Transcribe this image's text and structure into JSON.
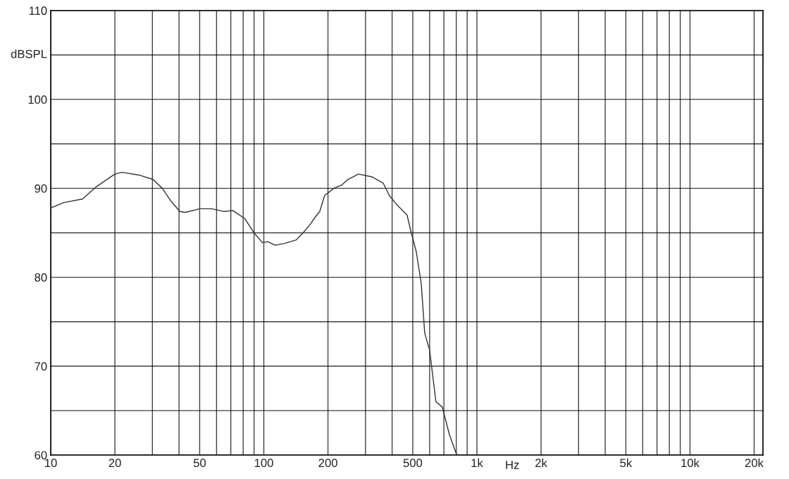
{
  "chart_data": {
    "type": "line",
    "xlabel": "Hz",
    "ylabel": "dBSPL",
    "log": "x",
    "grid": true,
    "marker": "none",
    "line_style": "solid",
    "xlim": [
      10,
      22000
    ],
    "xticks": [
      10,
      20,
      {
        "value": 30,
        "label": null
      },
      {
        "value": 40,
        "label": null
      },
      50,
      {
        "value": 60,
        "label": null
      },
      {
        "value": 70,
        "label": null
      },
      {
        "value": 80,
        "label": null
      },
      {
        "value": 90,
        "label": null
      },
      100,
      200,
      {
        "value": 300,
        "label": null
      },
      {
        "value": 400,
        "label": null
      },
      500,
      {
        "value": 600,
        "label": null
      },
      {
        "value": 700,
        "label": null
      },
      {
        "value": 800,
        "label": null
      },
      {
        "value": 900,
        "label": null
      },
      {
        "value": 1000,
        "label": "1k"
      },
      {
        "value": 2000,
        "label": "2k"
      },
      {
        "value": 3000,
        "label": null
      },
      {
        "value": 4000,
        "label": null
      },
      {
        "value": 5000,
        "label": "5k"
      },
      {
        "value": 6000,
        "label": null
      },
      {
        "value": 7000,
        "label": null
      },
      {
        "value": 8000,
        "label": null
      },
      {
        "value": 9000,
        "label": null
      },
      {
        "value": 10000,
        "label": "10k"
      },
      {
        "value": 20000,
        "label": "20k"
      }
    ],
    "ylim": [
      60,
      110
    ],
    "yticks": [
      60,
      {
        "value": 65,
        "label": null
      },
      70,
      {
        "value": 75,
        "label": null
      },
      80,
      {
        "value": 85,
        "label": null
      },
      90,
      {
        "value": 95,
        "label": null
      },
      100,
      {
        "value": 105,
        "label": null
      },
      110
    ],
    "series": [
      {
        "color": "#333333",
        "x": [
          10,
          11.5,
          14.1,
          16.4,
          20,
          21.6,
          25.9,
          30.2,
          33.4,
          36.8,
          40.4,
          42.9,
          50,
          56.9,
          64.8,
          71.5,
          81.4,
          89.9,
          98.5,
          104.7,
          113,
          124.8,
          142,
          153,
          165.5,
          176,
          183,
          193,
          203,
          213,
          233,
          248,
          278,
          321,
          363,
          388,
          423,
          470,
          492,
          519,
          548,
          569,
          600,
          642,
          688,
          743,
          802
        ],
        "values": [
          87.8,
          88.4,
          88.8,
          90.2,
          91.6,
          91.8,
          91.5,
          91.0,
          90.0,
          88.5,
          87.4,
          87.3,
          87.7,
          87.7,
          87.4,
          87.5,
          86.6,
          85.0,
          83.9,
          84.0,
          83.6,
          83.8,
          84.2,
          85.0,
          86.0,
          86.9,
          87.4,
          89.2,
          89.6,
          90.0,
          90.4,
          91.0,
          91.6,
          91.3,
          90.6,
          89.2,
          88.1,
          87.0,
          85.0,
          82.9,
          79.3,
          73.7,
          71.8,
          66.0,
          65.4,
          62.3,
          60.1
        ]
      }
    ]
  }
}
